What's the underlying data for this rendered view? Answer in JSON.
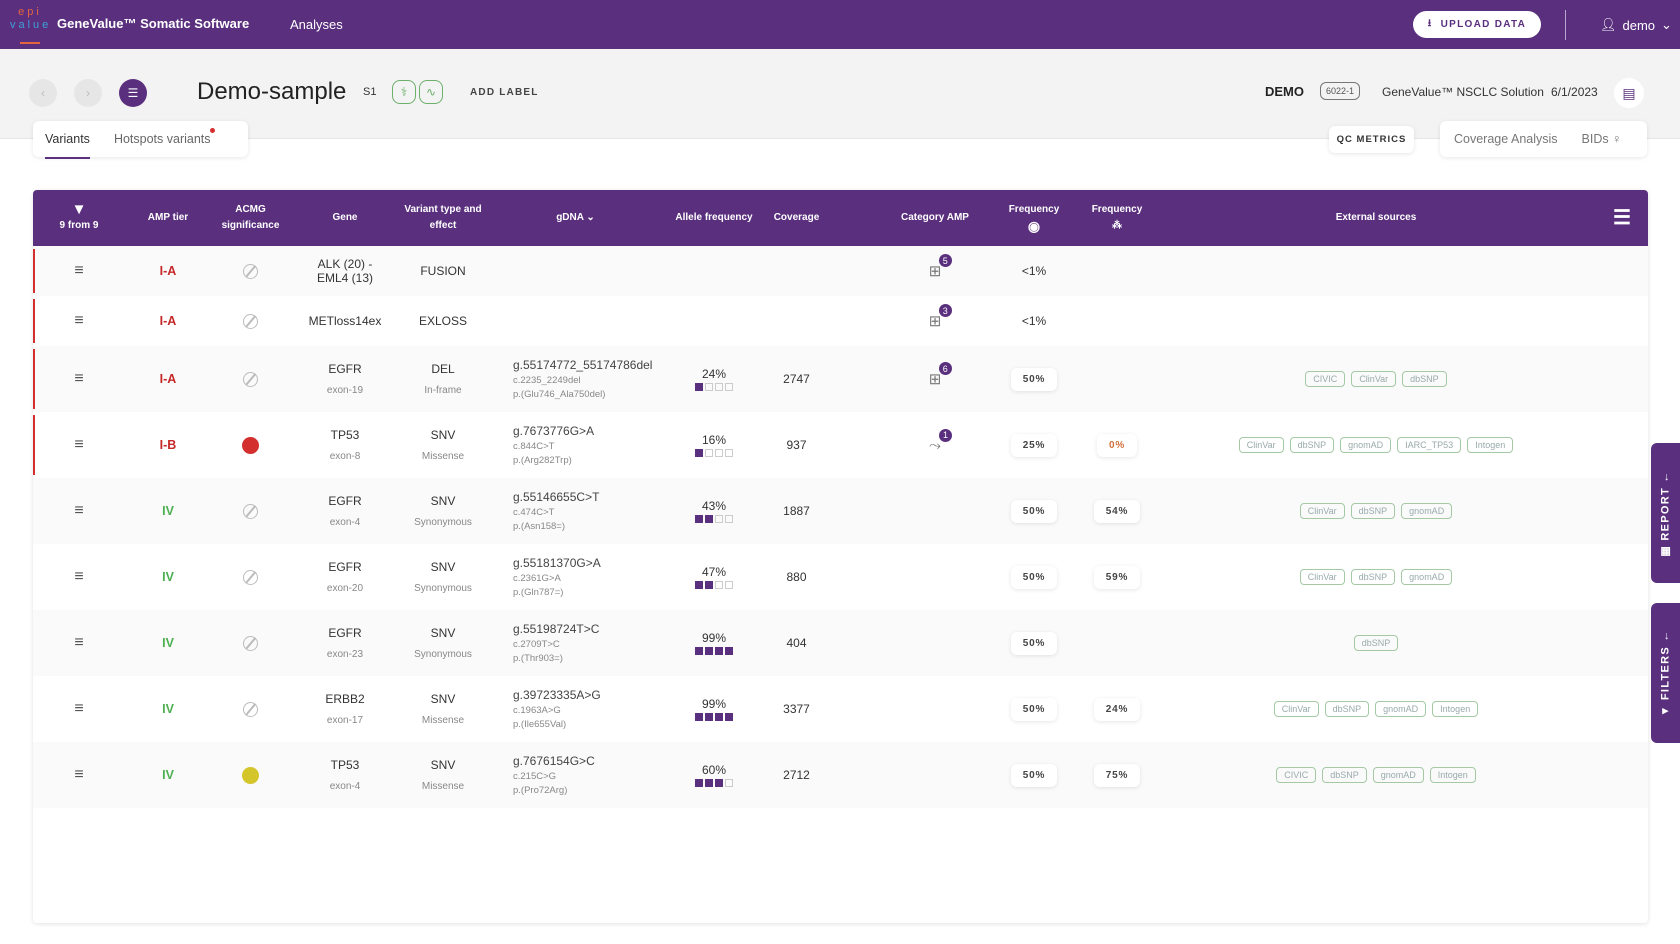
{
  "app": {
    "logo_top": "epi",
    "logo_bottom": "value",
    "name": "GeneValue™ Somatic Software",
    "nav": "Analyses",
    "upload": "UPLOAD DATA",
    "user": "demo"
  },
  "sample": {
    "title": "Demo-sample",
    "short": "S1",
    "add_label": "ADD LABEL",
    "owner": "DEMO",
    "code": "6022-1",
    "solution": "GeneValue™ NSCLC Solution",
    "date": "6/1/2023"
  },
  "tabs": [
    "Variants",
    "Hotspots variants"
  ],
  "qc": "QC METRICS",
  "right_tabs": [
    "Coverage Analysis",
    "BIDs"
  ],
  "header": {
    "filter_count": "9 from 9",
    "amp": "AMP tier",
    "acmg": "ACMG significance",
    "gene": "Gene",
    "vtype": "Variant type and effect",
    "gdna": "gDNA",
    "allele": "Allele frequency",
    "coverage": "Coverage",
    "category": "Category AMP",
    "freq1": "Frequency",
    "freq2": "Frequency",
    "external": "External sources"
  },
  "side": {
    "report": "REPORT",
    "filters": "FILTERS"
  },
  "colors": {
    "brand": "#5a2f7d",
    "tier_high": "#c62828",
    "tier_low": "#4caf50",
    "sig_red": "#d32f2f",
    "sig_yellow": "#d4c62a"
  },
  "rows": [
    {
      "tier": "I-A",
      "sig": "none",
      "gene": "ALK (20) - EML4 (13)",
      "exon": "",
      "type": "FUSION",
      "effect": "",
      "g": "",
      "c": "",
      "p": "",
      "af": "",
      "af_fill": 0,
      "cov": "",
      "cat_icon": "drug",
      "cat_count": "5",
      "f1": "<1%",
      "f1_pill": false,
      "f2": "",
      "sources": [],
      "red": true
    },
    {
      "tier": "I-A",
      "sig": "none",
      "gene": "METloss14ex",
      "exon": "",
      "type": "EXLOSS",
      "effect": "",
      "g": "",
      "c": "",
      "p": "",
      "af": "",
      "af_fill": 0,
      "cov": "",
      "cat_icon": "drug",
      "cat_count": "3",
      "f1": "<1%",
      "f1_pill": false,
      "f2": "",
      "sources": [],
      "red": true
    },
    {
      "tier": "I-A",
      "sig": "none",
      "gene": "EGFR",
      "exon": "exon-19",
      "type": "DEL",
      "effect": "In-frame",
      "g": "g.55174772_55174786del",
      "c": "c.2235_2249del",
      "p": "p.(Glu746_Ala750del)",
      "af": "24%",
      "af_fill": 1,
      "cov": "2747",
      "cat_icon": "drug",
      "cat_count": "6",
      "f1": "50%",
      "f1_pill": true,
      "f2": "",
      "sources": [
        "CIVIC",
        "ClinVar",
        "dbSNP"
      ],
      "red": true
    },
    {
      "tier": "I-B",
      "sig": "red",
      "gene": "TP53",
      "exon": "exon-8",
      "type": "SNV",
      "effect": "Missense",
      "g": "g.7673776G>A",
      "c": "c.844C>T",
      "p": "p.(Arg282Trp)",
      "af": "16%",
      "af_fill": 1,
      "cov": "937",
      "cat_icon": "trend",
      "cat_count": "1",
      "f1": "25%",
      "f1_pill": true,
      "f2": "0%",
      "sources": [
        "ClinVar",
        "dbSNP",
        "gnomAD",
        "IARC_TP53",
        "Intogen"
      ],
      "red": true
    },
    {
      "tier": "IV",
      "sig": "none",
      "gene": "EGFR",
      "exon": "exon-4",
      "type": "SNV",
      "effect": "Synonymous",
      "g": "g.55146655C>T",
      "c": "c.474C>T",
      "p": "p.(Asn158=)",
      "af": "43%",
      "af_fill": 2,
      "cov": "1887",
      "cat_icon": "",
      "cat_count": "",
      "f1": "50%",
      "f1_pill": true,
      "f2": "54%",
      "sources": [
        "ClinVar",
        "dbSNP",
        "gnomAD"
      ],
      "red": false
    },
    {
      "tier": "IV",
      "sig": "none",
      "gene": "EGFR",
      "exon": "exon-20",
      "type": "SNV",
      "effect": "Synonymous",
      "g": "g.55181370G>A",
      "c": "c.2361G>A",
      "p": "p.(Gln787=)",
      "af": "47%",
      "af_fill": 2,
      "cov": "880",
      "cat_icon": "",
      "cat_count": "",
      "f1": "50%",
      "f1_pill": true,
      "f2": "59%",
      "sources": [
        "ClinVar",
        "dbSNP",
        "gnomAD"
      ],
      "red": false
    },
    {
      "tier": "IV",
      "sig": "none",
      "gene": "EGFR",
      "exon": "exon-23",
      "type": "SNV",
      "effect": "Synonymous",
      "g": "g.55198724T>C",
      "c": "c.2709T>C",
      "p": "p.(Thr903=)",
      "af": "99%",
      "af_fill": 4,
      "cov": "404",
      "cat_icon": "",
      "cat_count": "",
      "f1": "50%",
      "f1_pill": true,
      "f2": "",
      "sources": [
        "dbSNP"
      ],
      "red": false
    },
    {
      "tier": "IV",
      "sig": "none",
      "gene": "ERBB2",
      "exon": "exon-17",
      "type": "SNV",
      "effect": "Missense",
      "g": "g.39723335A>G",
      "c": "c.1963A>G",
      "p": "p.(Ile655Val)",
      "af": "99%",
      "af_fill": 4,
      "cov": "3377",
      "cat_icon": "",
      "cat_count": "",
      "f1": "50%",
      "f1_pill": true,
      "f2": "24%",
      "sources": [
        "ClinVar",
        "dbSNP",
        "gnomAD",
        "Intogen"
      ],
      "red": false
    },
    {
      "tier": "IV",
      "sig": "yellow",
      "gene": "TP53",
      "exon": "exon-4",
      "type": "SNV",
      "effect": "Missense",
      "g": "g.7676154G>C",
      "c": "c.215C>G",
      "p": "p.(Pro72Arg)",
      "af": "60%",
      "af_fill": 3,
      "cov": "2712",
      "cat_icon": "",
      "cat_count": "",
      "f1": "50%",
      "f1_pill": true,
      "f2": "75%",
      "sources": [
        "CIVIC",
        "dbSNP",
        "gnomAD",
        "Intogen"
      ],
      "red": false
    }
  ]
}
